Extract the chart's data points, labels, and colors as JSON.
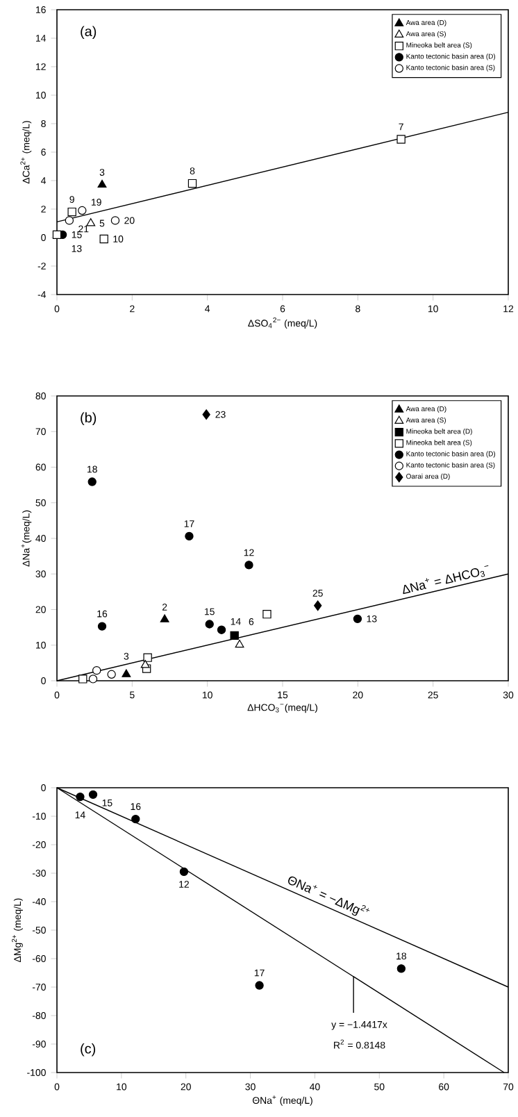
{
  "chart_data": [
    {
      "type": "scatter",
      "title": "(a)",
      "xlabel": "ΔSO$_{4}$$^{2−}$ (meq/L)",
      "ylabel": "ΔCa$^{2+}$ (meq/L)",
      "xlim": [
        0,
        12
      ],
      "ylim": [
        -4,
        16
      ],
      "xticks": [
        0,
        2,
        4,
        6,
        8,
        10,
        12
      ],
      "yticks": [
        -4,
        -2,
        0,
        2,
        4,
        6,
        8,
        10,
        12,
        14,
        16
      ],
      "legend": "top right",
      "series": [
        {
          "name": "Awa area (D)",
          "color": "#000000",
          "marker": "triangle",
          "x": [
            1.2
          ],
          "values": [
            3.7
          ]
        },
        {
          "name": "Awa area (S)",
          "color": "#ffffff",
          "marker": "triangle",
          "x": [
            0.9
          ],
          "values": [
            1.0
          ]
        },
        {
          "name": "Mineoka belt area (S)",
          "color": "#ffffff",
          "marker": "square",
          "x": [
            9.15,
            3.6,
            0.4,
            1.25,
            0.0
          ],
          "values": [
            6.9,
            3.8,
            1.8,
            -0.1,
            0.2
          ]
        },
        {
          "name": "Kanto tectonic basin area (D)",
          "color": "#000000",
          "marker": "circle",
          "x": [
            0.15
          ],
          "values": [
            0.2
          ]
        },
        {
          "name": "Kanto tectonic basin area (S)",
          "color": "#ffffff",
          "marker": "circle",
          "x": [
            0.33,
            0.67,
            1.55
          ],
          "values": [
            1.2,
            1.9,
            1.2
          ]
        },
        {
          "type": "line",
          "color": "#000000",
          "marker": "none",
          "x": [
            0,
            12
          ],
          "values": [
            1.1,
            8.8
          ]
        }
      ],
      "annotations": [
        {
          "text": "3",
          "x": 1.2,
          "y": 3.7
        },
        {
          "text": "5",
          "x": 0.9,
          "y": 1.0
        },
        {
          "text": "7",
          "x": 9.15,
          "y": 6.9
        },
        {
          "text": "8",
          "x": 3.6,
          "y": 3.8
        },
        {
          "text": "9",
          "x": 0.4,
          "y": 1.8
        },
        {
          "text": "19",
          "x": 0.67,
          "y": 1.9
        },
        {
          "text": "20",
          "x": 1.55,
          "y": 1.2
        },
        {
          "text": "10",
          "x": 1.25,
          "y": -0.1
        },
        {
          "text": "13",
          "x": 0.0,
          "y": 0.2
        },
        {
          "text": "21",
          "x": 0.33,
          "y": 1.2
        },
        {
          "text": "15",
          "x": 0.15,
          "y": 0.2
        }
      ]
    },
    {
      "type": "scatter",
      "title": "(b)",
      "xlabel": "ΔHCO$_{3}$$^{−}$(meq/L)",
      "ylabel": "ΔNa$^{+}$(meq/L)",
      "xlim": [
        0,
        30
      ],
      "ylim": [
        0,
        80
      ],
      "xticks": [
        0,
        5,
        10,
        15,
        20,
        25,
        30
      ],
      "yticks": [
        0,
        10,
        20,
        30,
        40,
        50,
        60,
        70,
        80
      ],
      "legend": "top right",
      "series": [
        {
          "name": "Awa area (D)",
          "color": "#000000",
          "marker": "triangle",
          "x": [
            7.16,
            4.61
          ],
          "values": [
            17.2,
            1.8
          ]
        },
        {
          "name": "Awa area (S)",
          "color": "#ffffff",
          "marker": "triangle",
          "x": [
            12.14,
            5.87
          ],
          "values": [
            10.1,
            4.4
          ]
        },
        {
          "name": "Mineoka belt area (D)",
          "color": "#000000",
          "marker": "square",
          "x": [
            11.8
          ],
          "values": [
            12.7
          ]
        },
        {
          "name": "Mineoka belt area (S)",
          "color": "#ffffff",
          "marker": "square",
          "x": [
            13.96,
            6.03,
            5.96,
            1.72
          ],
          "values": [
            18.7,
            6.5,
            3.4,
            0.5
          ]
        },
        {
          "name": "Kanto tectonic basin area (D)",
          "color": "#000000",
          "marker": "circle",
          "x": [
            2.34,
            8.79,
            12.76,
            3.0,
            10.14,
            10.94,
            19.98
          ],
          "values": [
            55.9,
            40.6,
            32.5,
            15.3,
            15.9,
            14.3,
            17.4
          ]
        },
        {
          "name": "Kanto tectonic basin area (S)",
          "color": "#ffffff",
          "marker": "circle",
          "x": [
            2.64,
            2.4,
            3.63
          ],
          "values": [
            2.9,
            0.5,
            1.8
          ]
        },
        {
          "name": "Oarai area (D)",
          "color": "#000000",
          "marker": "diamond",
          "x": [
            9.93,
            17.34
          ],
          "values": [
            74.8,
            21.1
          ]
        },
        {
          "type": "line",
          "color": "#000000",
          "marker": "none",
          "x": [
            0,
            30
          ],
          "values": [
            0,
            30
          ]
        }
      ],
      "annotations": [
        {
          "text": "23",
          "x": 9.93,
          "y": 74.8
        },
        {
          "text": "18",
          "x": 2.34,
          "y": 55.9
        },
        {
          "text": "17",
          "x": 8.79,
          "y": 40.6
        },
        {
          "text": "12",
          "x": 12.76,
          "y": 32.5
        },
        {
          "text": "16",
          "x": 3.0,
          "y": 15.3
        },
        {
          "text": "2",
          "x": 7.16,
          "y": 17.2
        },
        {
          "text": "15",
          "x": 10.14,
          "y": 15.9
        },
        {
          "text": "14",
          "x": 10.94,
          "y": 14.3
        },
        {
          "text": "6",
          "x": 11.8,
          "y": 12.7
        },
        {
          "text": "25",
          "x": 17.34,
          "y": 21.1
        },
        {
          "text": "13",
          "x": 19.98,
          "y": 17.4
        },
        {
          "text": "3",
          "x": 4.61,
          "y": 1.8
        },
        {
          "text": "ΔNa$^{+}$ = ΔHCO$_{3}$$^{−}$",
          "x": 26.0,
          "y": 26.0
        }
      ]
    },
    {
      "type": "scatter",
      "title": "(c)",
      "xlabel": "ΘNa$^{+}$ (meq/L)",
      "ylabel": "ΔMg$^{2+}$ (meq/L)",
      "xlim": [
        0,
        70
      ],
      "ylim": [
        -100,
        0
      ],
      "xticks": [
        0,
        10,
        20,
        30,
        40,
        50,
        60,
        70
      ],
      "yticks": [
        -100,
        -90,
        -80,
        -70,
        -60,
        -50,
        -40,
        -30,
        -20,
        -10,
        0
      ],
      "series": [
        {
          "color": "#000000",
          "marker": "circle",
          "x": [
            3.6,
            5.6,
            12.2,
            19.7,
            31.4,
            53.4
          ],
          "values": [
            -3.2,
            -2.4,
            -11,
            -29.5,
            -69.4,
            -63.5
          ]
        },
        {
          "type": "line",
          "color": "#000000",
          "marker": "none",
          "x": [
            0,
            70
          ],
          "values": [
            0,
            -70
          ]
        },
        {
          "type": "line",
          "color": "#000000",
          "marker": "none",
          "x": [
            0,
            69.36
          ],
          "values": [
            0,
            -100
          ]
        },
        {
          "type": "line",
          "color": "#000000",
          "marker": "none",
          "x": [
            46,
            46
          ],
          "values": [
            -66.3,
            -79
          ]
        }
      ],
      "annotations": [
        {
          "text": "14",
          "x": 3.6,
          "y": -3.2
        },
        {
          "text": "15",
          "x": 5.6,
          "y": -2.4
        },
        {
          "text": "16",
          "x": 12.2,
          "y": -11
        },
        {
          "text": "12",
          "x": 19.7,
          "y": -29.5
        },
        {
          "text": "17",
          "x": 31.4,
          "y": -69.4
        },
        {
          "text": "18",
          "x": 53.4,
          "y": -63.5
        },
        {
          "text": "ΘNa$^{+}$ = −ΔMg$^{2+}$",
          "x": 41.5,
          "y": -41.5
        },
        "y = −1.4417x",
        "R$^{2}$ = 0.8148"
      ]
    }
  ]
}
